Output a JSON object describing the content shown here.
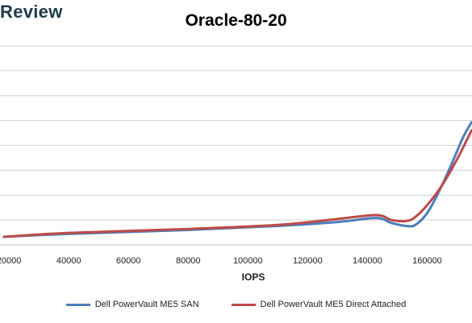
{
  "watermark": {
    "text": "Review"
  },
  "chart_data": {
    "type": "line",
    "title": "Oracle-80-20",
    "xlabel": "IOPS",
    "ylabel": "",
    "xlim": [
      17000,
      175000
    ],
    "ylim": [
      0,
      10
    ],
    "x_ticks": [
      "20000",
      "40000",
      "60000",
      "80000",
      "100000",
      "120000",
      "140000",
      "160000"
    ],
    "y_grid_count": 9,
    "grid": true,
    "legend_position": "bottom",
    "series": [
      {
        "name": "Dell PowerVault ME5 SAN",
        "color": "#4a7ebb",
        "points": [
          [
            18000,
            0.4
          ],
          [
            40000,
            0.55
          ],
          [
            80000,
            0.75
          ],
          [
            110000,
            0.95
          ],
          [
            130000,
            1.15
          ],
          [
            143000,
            1.35
          ],
          [
            148000,
            1.1
          ],
          [
            153000,
            0.95
          ],
          [
            156000,
            1.0
          ],
          [
            160000,
            1.6
          ],
          [
            164000,
            2.7
          ],
          [
            168000,
            4.0
          ],
          [
            172000,
            5.4
          ],
          [
            175000,
            6.2
          ]
        ]
      },
      {
        "name": "Dell PowerVault ME5 Direct Attached",
        "color": "#be4b48",
        "points": [
          [
            18000,
            0.4
          ],
          [
            40000,
            0.6
          ],
          [
            80000,
            0.8
          ],
          [
            110000,
            1.0
          ],
          [
            130000,
            1.3
          ],
          [
            143000,
            1.5
          ],
          [
            148000,
            1.25
          ],
          [
            153000,
            1.2
          ],
          [
            156000,
            1.4
          ],
          [
            160000,
            2.0
          ],
          [
            165000,
            3.0
          ],
          [
            170000,
            4.3
          ],
          [
            175000,
            5.8
          ]
        ]
      }
    ]
  }
}
